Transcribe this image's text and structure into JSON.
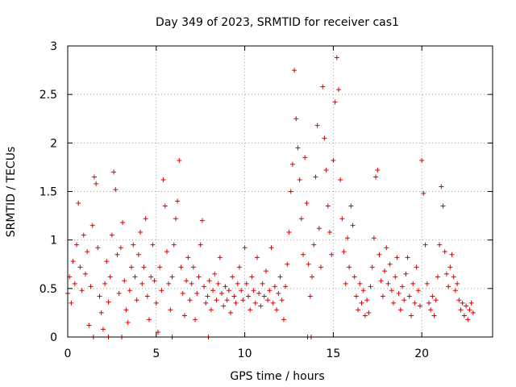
{
  "chart_data": {
    "type": "scatter",
    "title": "Day 349 of 2023, SRMTID for receiver cas1",
    "xlabel": "GPS time / hours",
    "ylabel": "SRMTID / TECUs",
    "xlim": [
      0,
      24
    ],
    "ylim": [
      0,
      3
    ],
    "xticks": [
      0,
      5,
      10,
      15,
      20
    ],
    "xtick_labels": [
      "0",
      "5",
      "10",
      "15",
      "20"
    ],
    "yticks": [
      0,
      0.5,
      1,
      1.5,
      2,
      2.5,
      3
    ],
    "ytick_labels": [
      "0",
      "0.5",
      "1",
      "1.5",
      "2",
      "2.5",
      "3"
    ],
    "grid": true,
    "marker": "plus",
    "series": [
      {
        "name": "SRMTID",
        "color": "#dd0000",
        "points": [
          [
            0.0,
            0.45
          ],
          [
            0.1,
            0.62
          ],
          [
            0.2,
            0.35
          ],
          [
            0.3,
            0.78
          ],
          [
            0.4,
            0.55
          ],
          [
            0.5,
            0.95
          ],
          [
            0.6,
            1.38
          ],
          [
            0.7,
            0.72
          ],
          [
            0.8,
            0.48
          ],
          [
            0.9,
            1.05
          ],
          [
            1.0,
            0.65
          ],
          [
            1.1,
            0.88
          ],
          [
            1.2,
            0.12
          ],
          [
            1.3,
            0.52
          ],
          [
            1.4,
            1.15
          ],
          [
            1.5,
            1.65
          ],
          [
            1.6,
            1.58
          ],
          [
            1.7,
            0.92
          ],
          [
            1.8,
            0.42
          ],
          [
            1.9,
            0.25
          ],
          [
            2.0,
            0.08
          ],
          [
            2.1,
            0.55
          ],
          [
            2.2,
            0.78
          ],
          [
            2.3,
            0.36
          ],
          [
            2.4,
            0.62
          ],
          [
            2.5,
            1.05
          ],
          [
            2.6,
            1.7
          ],
          [
            2.7,
            1.52
          ],
          [
            2.8,
            0.85
          ],
          [
            2.9,
            0.45
          ],
          [
            3.0,
            0.92
          ],
          [
            3.1,
            1.18
          ],
          [
            3.2,
            0.58
          ],
          [
            3.3,
            0.28
          ],
          [
            3.4,
            0.15
          ],
          [
            3.5,
            0.48
          ],
          [
            3.6,
            0.72
          ],
          [
            3.7,
            0.95
          ],
          [
            3.8,
            0.62
          ],
          [
            3.9,
            0.38
          ],
          [
            4.0,
            0.85
          ],
          [
            4.1,
            1.08
          ],
          [
            4.2,
            0.55
          ],
          [
            4.3,
            0.72
          ],
          [
            4.4,
            1.22
          ],
          [
            4.5,
            0.42
          ],
          [
            4.6,
            0.18
          ],
          [
            4.7,
            0.62
          ],
          [
            4.8,
            0.95
          ],
          [
            4.9,
            0.58
          ],
          [
            5.0,
            0.35
          ],
          [
            5.1,
            0.05
          ],
          [
            5.2,
            0.72
          ],
          [
            5.3,
            0.48
          ],
          [
            5.4,
            1.62
          ],
          [
            5.5,
            1.35
          ],
          [
            5.6,
            0.88
          ],
          [
            5.7,
            0.55
          ],
          [
            5.8,
            0.28
          ],
          [
            5.9,
            0.62
          ],
          [
            6.0,
            0.95
          ],
          [
            6.1,
            1.22
          ],
          [
            6.2,
            1.4
          ],
          [
            6.3,
            1.82
          ],
          [
            6.4,
            0.72
          ],
          [
            6.5,
            0.45
          ],
          [
            6.6,
            0.22
          ],
          [
            6.7,
            0.58
          ],
          [
            6.8,
            0.82
          ],
          [
            6.9,
            0.38
          ],
          [
            7.0,
            0.55
          ],
          [
            7.1,
            0.72
          ],
          [
            7.2,
            0.18
          ],
          [
            7.3,
            0.45
          ],
          [
            7.4,
            0.62
          ],
          [
            7.5,
            0.95
          ],
          [
            7.6,
            1.2
          ],
          [
            7.7,
            0.52
          ],
          [
            7.8,
            0.35
          ],
          [
            7.9,
            0.42
          ],
          [
            8.0,
            0.58
          ],
          [
            8.1,
            0.28
          ],
          [
            8.2,
            0.48
          ],
          [
            8.3,
            0.65
          ],
          [
            8.4,
            0.38
          ],
          [
            8.5,
            0.55
          ],
          [
            8.6,
            0.82
          ],
          [
            8.7,
            0.45
          ],
          [
            8.8,
            0.32
          ],
          [
            8.9,
            0.52
          ],
          [
            9.0,
            0.38
          ],
          [
            9.1,
            0.48
          ],
          [
            9.2,
            0.25
          ],
          [
            9.3,
            0.62
          ],
          [
            9.4,
            0.42
          ],
          [
            9.5,
            0.35
          ],
          [
            9.6,
            0.55
          ],
          [
            9.7,
            0.72
          ],
          [
            9.8,
            0.48
          ],
          [
            9.9,
            0.38
          ],
          [
            10.0,
            0.92
          ],
          [
            10.1,
            0.55
          ],
          [
            10.2,
            0.42
          ],
          [
            10.3,
            0.28
          ],
          [
            10.4,
            0.62
          ],
          [
            10.5,
            0.48
          ],
          [
            10.6,
            0.35
          ],
          [
            10.7,
            0.82
          ],
          [
            10.8,
            0.45
          ],
          [
            10.9,
            0.32
          ],
          [
            11.0,
            0.55
          ],
          [
            11.1,
            0.42
          ],
          [
            11.2,
            0.68
          ],
          [
            11.3,
            0.38
          ],
          [
            11.4,
            0.48
          ],
          [
            11.5,
            0.92
          ],
          [
            11.6,
            0.35
          ],
          [
            11.7,
            0.52
          ],
          [
            11.8,
            0.28
          ],
          [
            11.9,
            0.45
          ],
          [
            12.0,
            0.62
          ],
          [
            12.1,
            0.38
          ],
          [
            12.2,
            0.18
          ],
          [
            12.3,
            0.52
          ],
          [
            12.4,
            0.75
          ],
          [
            12.5,
            1.08
          ],
          [
            12.6,
            1.5
          ],
          [
            12.7,
            1.78
          ],
          [
            12.8,
            2.75
          ],
          [
            12.9,
            2.25
          ],
          [
            13.0,
            1.95
          ],
          [
            13.1,
            1.62
          ],
          [
            13.2,
            1.22
          ],
          [
            13.3,
            0.85
          ],
          [
            13.4,
            1.85
          ],
          [
            13.5,
            1.38
          ],
          [
            13.6,
            0.75
          ],
          [
            13.7,
            0.42
          ],
          [
            13.8,
            0.62
          ],
          [
            13.9,
            0.95
          ],
          [
            14.0,
            1.65
          ],
          [
            14.1,
            2.18
          ],
          [
            14.2,
            1.12
          ],
          [
            14.3,
            0.72
          ],
          [
            14.4,
            2.58
          ],
          [
            14.5,
            2.05
          ],
          [
            14.6,
            1.72
          ],
          [
            14.7,
            1.35
          ],
          [
            14.8,
            1.08
          ],
          [
            14.9,
            0.85
          ],
          [
            15.0,
            1.82
          ],
          [
            15.1,
            2.42
          ],
          [
            15.2,
            2.88
          ],
          [
            15.3,
            2.55
          ],
          [
            15.4,
            1.62
          ],
          [
            15.5,
            1.22
          ],
          [
            15.6,
            0.88
          ],
          [
            15.7,
            0.55
          ],
          [
            15.8,
            1.02
          ],
          [
            15.9,
            0.72
          ],
          [
            16.0,
            1.35
          ],
          [
            16.1,
            1.15
          ],
          [
            16.2,
            0.62
          ],
          [
            16.3,
            0.42
          ],
          [
            16.4,
            0.28
          ],
          [
            16.5,
            0.55
          ],
          [
            16.6,
            0.35
          ],
          [
            16.7,
            0.48
          ],
          [
            16.8,
            0.22
          ],
          [
            16.9,
            0.38
          ],
          [
            17.0,
            0.25
          ],
          [
            17.1,
            0.52
          ],
          [
            17.2,
            0.72
          ],
          [
            17.3,
            1.02
          ],
          [
            17.4,
            1.65
          ],
          [
            17.5,
            1.72
          ],
          [
            17.6,
            0.85
          ],
          [
            17.7,
            0.58
          ],
          [
            17.8,
            0.42
          ],
          [
            17.9,
            0.68
          ],
          [
            18.0,
            0.92
          ],
          [
            18.1,
            0.55
          ],
          [
            18.2,
            0.75
          ],
          [
            18.3,
            0.48
          ],
          [
            18.4,
            0.35
          ],
          [
            18.5,
            0.62
          ],
          [
            18.6,
            0.82
          ],
          [
            18.7,
            0.45
          ],
          [
            18.8,
            0.28
          ],
          [
            18.9,
            0.52
          ],
          [
            19.0,
            0.38
          ],
          [
            19.1,
            0.65
          ],
          [
            19.2,
            0.82
          ],
          [
            19.3,
            0.42
          ],
          [
            19.4,
            0.22
          ],
          [
            19.5,
            0.55
          ],
          [
            19.6,
            0.35
          ],
          [
            19.7,
            0.72
          ],
          [
            19.8,
            0.48
          ],
          [
            19.9,
            0.32
          ],
          [
            20.0,
            1.82
          ],
          [
            20.1,
            1.48
          ],
          [
            20.2,
            0.95
          ],
          [
            20.3,
            0.55
          ],
          [
            20.4,
            0.35
          ],
          [
            20.5,
            0.28
          ],
          [
            20.6,
            0.42
          ],
          [
            20.7,
            0.22
          ],
          [
            20.8,
            0.38
          ],
          [
            20.9,
            0.62
          ],
          [
            21.0,
            0.95
          ],
          [
            21.1,
            1.55
          ],
          [
            21.2,
            1.35
          ],
          [
            21.3,
            0.88
          ],
          [
            21.4,
            0.65
          ],
          [
            21.5,
            0.52
          ],
          [
            21.6,
            0.72
          ],
          [
            21.7,
            0.85
          ],
          [
            21.8,
            0.62
          ],
          [
            21.9,
            0.48
          ],
          [
            22.0,
            0.55
          ],
          [
            22.1,
            0.38
          ],
          [
            22.2,
            0.28
          ],
          [
            22.3,
            0.35
          ],
          [
            22.4,
            0.22
          ],
          [
            22.5,
            0.32
          ],
          [
            22.6,
            0.18
          ],
          [
            22.7,
            0.28
          ],
          [
            22.8,
            0.35
          ],
          [
            22.9,
            0.25
          ],
          [
            1.45,
            0.0
          ],
          [
            2.3,
            0.0
          ],
          [
            3.05,
            0.0
          ],
          [
            5.9,
            0.0
          ],
          [
            7.95,
            0.0
          ],
          [
            13.55,
            0.0
          ],
          [
            13.75,
            0.0
          ]
        ]
      }
    ]
  }
}
